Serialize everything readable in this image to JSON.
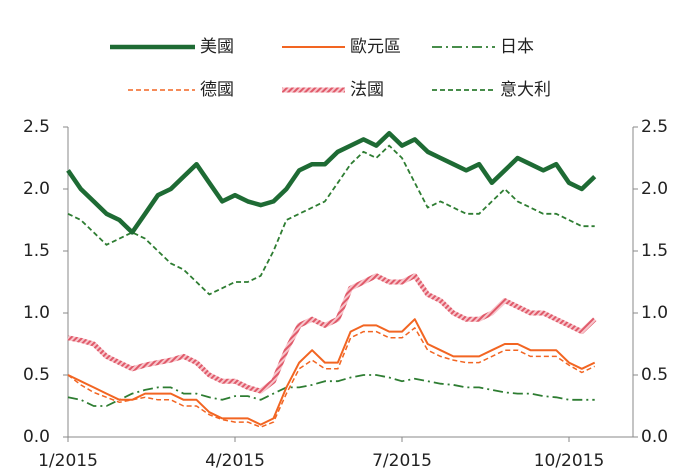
{
  "chart_data": {
    "type": "line",
    "categories": [
      "1/2015",
      null,
      null,
      null,
      null,
      null,
      null,
      null,
      null,
      null,
      null,
      null,
      null,
      "4/2015",
      null,
      null,
      null,
      null,
      null,
      null,
      null,
      null,
      null,
      null,
      null,
      null,
      "7/2015",
      null,
      null,
      null,
      null,
      null,
      null,
      null,
      null,
      null,
      null,
      null,
      null,
      "10/2015",
      null,
      null
    ],
    "series": [
      {
        "name": "美國",
        "color": "#1e6b34",
        "style": "solid",
        "width": 4.5,
        "values": [
          2.15,
          2.0,
          1.9,
          1.8,
          1.75,
          1.65,
          1.8,
          1.95,
          2.0,
          2.1,
          2.2,
          2.05,
          1.9,
          1.95,
          1.9,
          1.87,
          1.9,
          2.0,
          2.15,
          2.2,
          2.2,
          2.3,
          2.35,
          2.4,
          2.35,
          2.45,
          2.35,
          2.4,
          2.3,
          2.25,
          2.2,
          2.15,
          2.2,
          2.05,
          2.15,
          2.25,
          2.2,
          2.15,
          2.2,
          2.05,
          2.0,
          2.1
        ]
      },
      {
        "name": "歐元區",
        "color": "#f26522",
        "style": "solid",
        "width": 2,
        "values": [
          0.5,
          0.45,
          0.4,
          0.35,
          0.3,
          0.3,
          0.35,
          0.35,
          0.35,
          0.3,
          0.3,
          0.2,
          0.15,
          0.15,
          0.15,
          0.1,
          0.15,
          0.4,
          0.6,
          0.7,
          0.6,
          0.6,
          0.85,
          0.9,
          0.9,
          0.85,
          0.85,
          0.95,
          0.75,
          0.7,
          0.65,
          0.65,
          0.65,
          0.7,
          0.75,
          0.75,
          0.7,
          0.7,
          0.7,
          0.6,
          0.55,
          0.6
        ]
      },
      {
        "name": "日本",
        "color": "#2e7d32",
        "style": "dashdot",
        "width": 1.8,
        "values": [
          0.32,
          0.3,
          0.25,
          0.25,
          0.3,
          0.35,
          0.38,
          0.4,
          0.4,
          0.35,
          0.35,
          0.32,
          0.3,
          0.33,
          0.33,
          0.3,
          0.35,
          0.4,
          0.4,
          0.42,
          0.45,
          0.45,
          0.48,
          0.5,
          0.5,
          0.48,
          0.45,
          0.47,
          0.45,
          0.43,
          0.42,
          0.4,
          0.4,
          0.38,
          0.36,
          0.35,
          0.35,
          0.33,
          0.32,
          0.3,
          0.3,
          0.3
        ]
      },
      {
        "name": "德國",
        "color": "#f26522",
        "style": "dashed",
        "width": 1.5,
        "values": [
          0.5,
          0.42,
          0.36,
          0.32,
          0.28,
          0.3,
          0.32,
          0.3,
          0.3,
          0.25,
          0.25,
          0.18,
          0.14,
          0.12,
          0.12,
          0.08,
          0.12,
          0.35,
          0.55,
          0.62,
          0.55,
          0.55,
          0.8,
          0.85,
          0.85,
          0.8,
          0.8,
          0.88,
          0.7,
          0.65,
          0.62,
          0.6,
          0.6,
          0.65,
          0.7,
          0.7,
          0.65,
          0.65,
          0.65,
          0.58,
          0.52,
          0.57
        ]
      },
      {
        "name": "法國",
        "color": "#e05a6a",
        "style": "hatched",
        "width": 5,
        "values": [
          0.8,
          0.78,
          0.75,
          0.65,
          0.6,
          0.55,
          0.58,
          0.6,
          0.62,
          0.65,
          0.6,
          0.5,
          0.45,
          0.45,
          0.4,
          0.37,
          0.45,
          0.7,
          0.9,
          0.95,
          0.9,
          0.95,
          1.2,
          1.25,
          1.3,
          1.25,
          1.25,
          1.3,
          1.15,
          1.1,
          1.0,
          0.95,
          0.95,
          1.0,
          1.1,
          1.05,
          1.0,
          1.0,
          0.95,
          0.9,
          0.85,
          0.95
        ]
      },
      {
        "name": "意大利",
        "color": "#2e7d32",
        "style": "dashed",
        "width": 1.8,
        "values": [
          1.8,
          1.75,
          1.65,
          1.55,
          1.6,
          1.65,
          1.6,
          1.5,
          1.4,
          1.35,
          1.25,
          1.15,
          1.2,
          1.25,
          1.25,
          1.3,
          1.5,
          1.75,
          1.8,
          1.85,
          1.9,
          2.05,
          2.2,
          2.3,
          2.25,
          2.35,
          2.25,
          2.05,
          1.85,
          1.9,
          1.85,
          1.8,
          1.8,
          1.9,
          2.0,
          1.9,
          1.85,
          1.8,
          1.8,
          1.75,
          1.7,
          1.7
        ]
      }
    ],
    "ylim": [
      0,
      2.5
    ],
    "yticks": [
      {
        "value": 0,
        "label": "0.0"
      },
      {
        "value": 0.5,
        "label": "0.5"
      },
      {
        "value": 1,
        "label": "1.0"
      },
      {
        "value": 1.5,
        "label": "1.5"
      },
      {
        "value": 2,
        "label": "2.0"
      },
      {
        "value": 2.5,
        "label": "2.5"
      }
    ],
    "y2lim": [
      0,
      2.5
    ],
    "y2ticks": [
      {
        "value": 0,
        "label": "0.0"
      },
      {
        "value": 0.5,
        "label": "0.5"
      },
      {
        "value": 1,
        "label": "1.0"
      },
      {
        "value": 1.5,
        "label": "1.5"
      },
      {
        "value": 2,
        "label": "2.0"
      },
      {
        "value": 2.5,
        "label": "2.5"
      }
    ],
    "grid": false
  }
}
